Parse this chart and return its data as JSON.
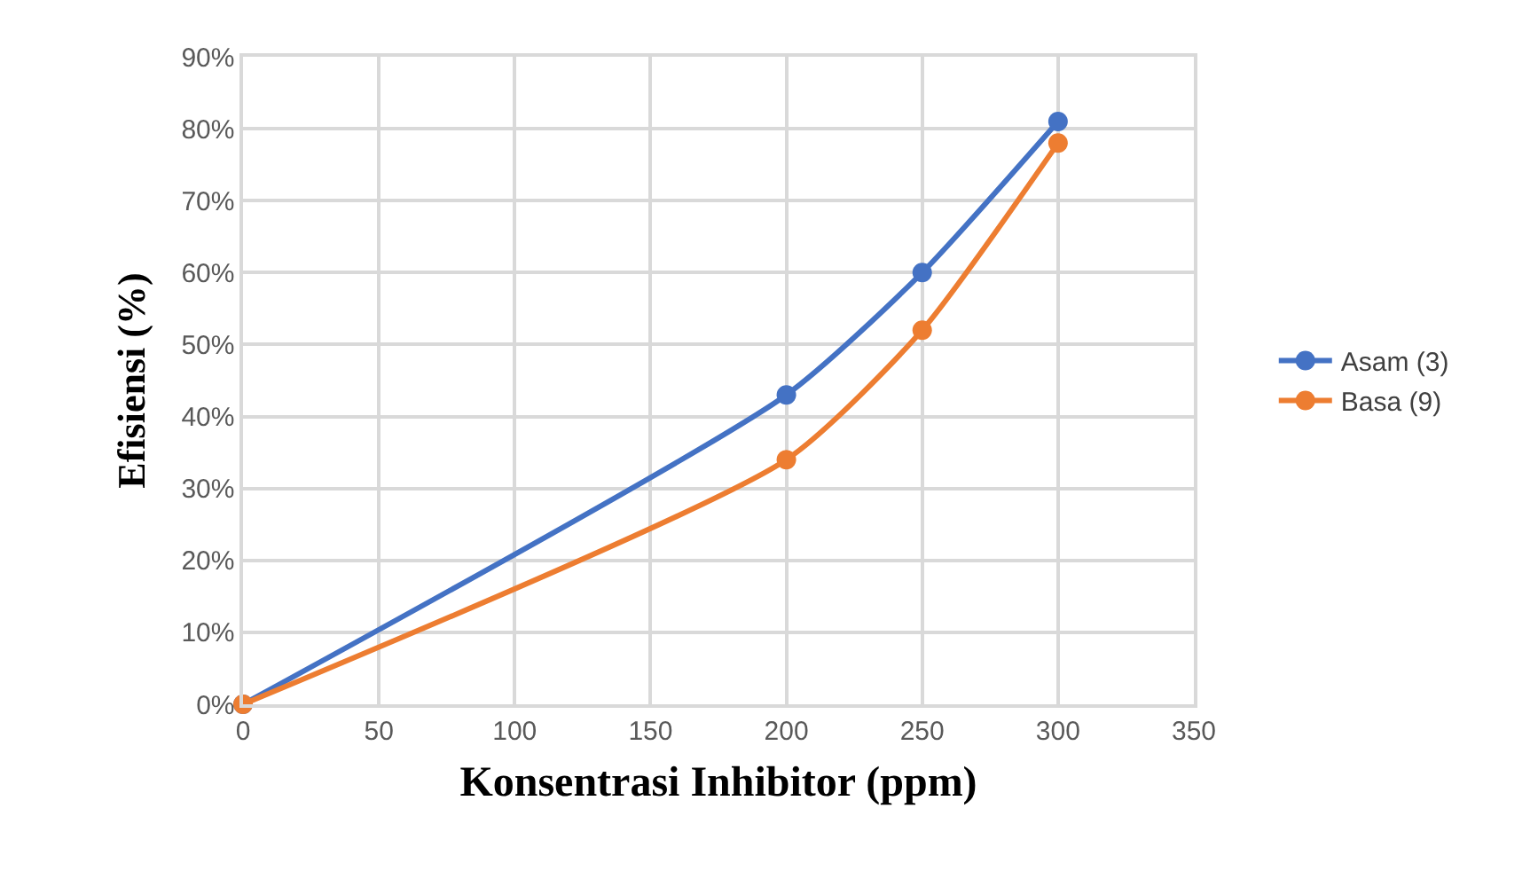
{
  "chart_data": {
    "type": "line",
    "xlabel": "Konsentrasi Inhibitor (ppm)",
    "ylabel": "Efisiensi (%)",
    "x": [
      0,
      200,
      250,
      300
    ],
    "series": [
      {
        "name": "Asam (3)",
        "color": "#4472c4",
        "values": [
          0,
          43,
          60,
          81
        ]
      },
      {
        "name": "Basa (9)",
        "color": "#ed7d31",
        "values": [
          0,
          34,
          52,
          78
        ]
      }
    ],
    "xlim": [
      0,
      350
    ],
    "xticks": [
      0,
      50,
      100,
      150,
      200,
      250,
      300,
      350
    ],
    "ylim": [
      0,
      90
    ],
    "yticks": [
      {
        "value": 0,
        "label": "0%"
      },
      {
        "value": 10,
        "label": "10%"
      },
      {
        "value": 20,
        "label": "20%"
      },
      {
        "value": 30,
        "label": "30%"
      },
      {
        "value": 40,
        "label": "40%"
      },
      {
        "value": 50,
        "label": "50%"
      },
      {
        "value": 60,
        "label": "60%"
      },
      {
        "value": 70,
        "label": "70%"
      },
      {
        "value": 80,
        "label": "80%"
      },
      {
        "value": 90,
        "label": "90%"
      }
    ],
    "grid": true,
    "legend": "right",
    "marker": "circle",
    "line_style": "solid"
  }
}
